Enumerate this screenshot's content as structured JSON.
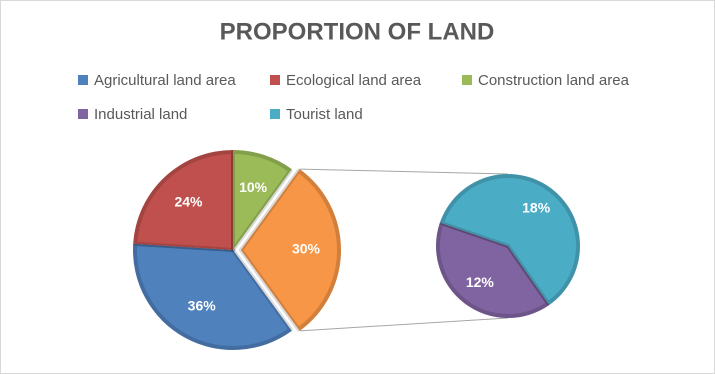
{
  "chart_data": {
    "type": "pie-of-pie",
    "title": "PROPORTION OF LAND",
    "categories": [
      "Agricultural land area",
      "Ecological land area",
      "Construction land area",
      null
    ],
    "values": [
      36,
      24,
      10,
      30
    ],
    "value_labels": [
      "36%",
      "24%",
      "10%",
      "30%"
    ],
    "colors": [
      "#4f81bd",
      "#c0504d",
      "#9bbb59",
      "#f79646"
    ],
    "secondary": {
      "categories": [
        "Industrial land",
        "Tourist land"
      ],
      "values": [
        12,
        18
      ],
      "value_labels": [
        "12%",
        "18%"
      ],
      "colors": [
        "#8064a2",
        "#4bacc6"
      ]
    }
  }
}
